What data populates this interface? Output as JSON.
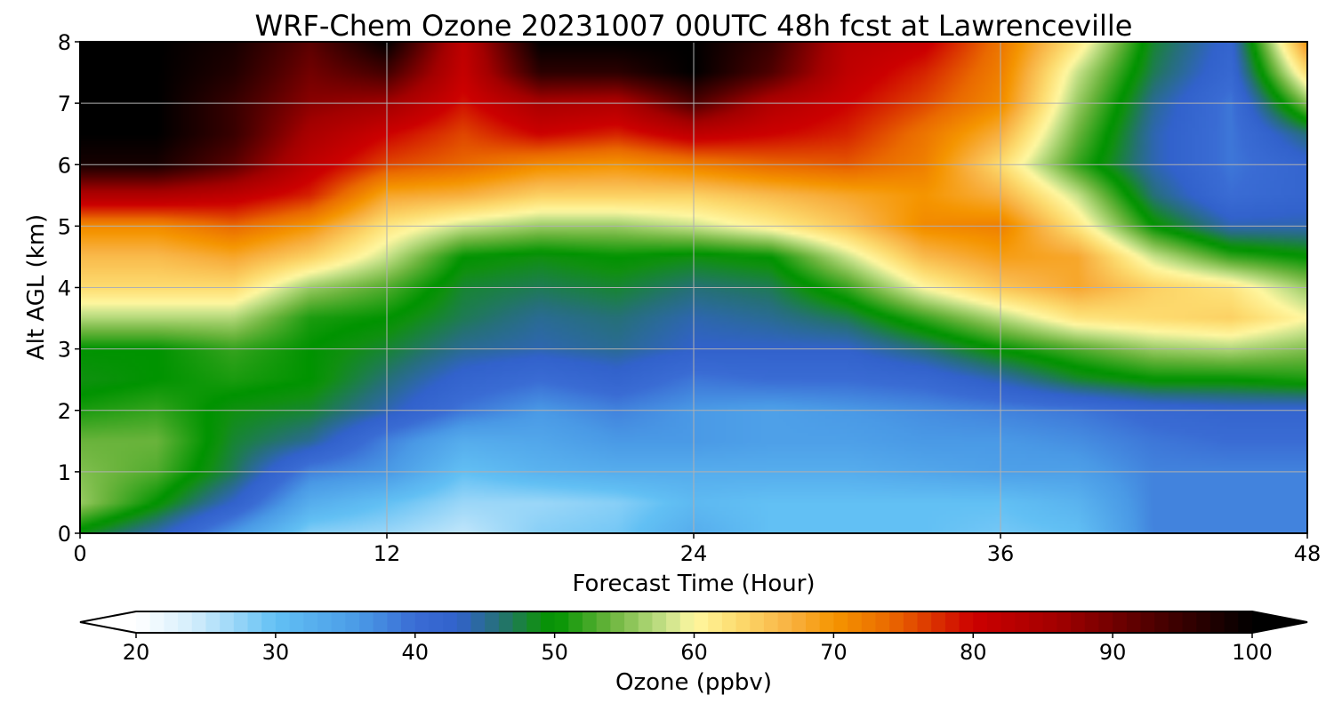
{
  "chart_data": {
    "type": "heatmap",
    "title": "WRF-Chem Ozone  20231007 00UTC 48h fcst at Lawrenceville",
    "xlabel": "Forecast Time (Hour)",
    "ylabel": "Alt AGL (km)",
    "xlim": [
      0,
      48
    ],
    "ylim": [
      0,
      8
    ],
    "xticks": [
      "0",
      "12",
      "24",
      "36",
      "48"
    ],
    "yticks": [
      "0",
      "1",
      "2",
      "3",
      "4",
      "5",
      "6",
      "7",
      "8"
    ],
    "grid": true,
    "colorbar": {
      "label": "Ozone  (ppbv)",
      "range": [
        20,
        100
      ],
      "ticks": [
        "20",
        "30",
        "40",
        "50",
        "60",
        "70",
        "80",
        "90",
        "100"
      ],
      "extend": "both",
      "stops": [
        {
          "v": 20,
          "c": "#ffffff"
        },
        {
          "v": 24,
          "c": "#d4eefc"
        },
        {
          "v": 30,
          "c": "#62c0f4"
        },
        {
          "v": 36,
          "c": "#4a9ae6"
        },
        {
          "v": 40,
          "c": "#3a6cd4"
        },
        {
          "v": 43,
          "c": "#3262cc"
        },
        {
          "v": 46,
          "c": "#267078"
        },
        {
          "v": 49,
          "c": "#109010"
        },
        {
          "v": 50,
          "c": "#009300"
        },
        {
          "v": 54,
          "c": "#6ab43c"
        },
        {
          "v": 58,
          "c": "#c8e28a"
        },
        {
          "v": 60,
          "c": "#fff7a0"
        },
        {
          "v": 63,
          "c": "#fddc70"
        },
        {
          "v": 67,
          "c": "#f8b040"
        },
        {
          "v": 70,
          "c": "#f59500"
        },
        {
          "v": 74,
          "c": "#ea6a00"
        },
        {
          "v": 80,
          "c": "#cc0000"
        },
        {
          "v": 86,
          "c": "#a30000"
        },
        {
          "v": 93,
          "c": "#4e0000"
        },
        {
          "v": 100,
          "c": "#000000"
        }
      ]
    },
    "hours": [
      0,
      3,
      6,
      9,
      12,
      15,
      18,
      21,
      24,
      27,
      30,
      33,
      36,
      39,
      42,
      45,
      48
    ],
    "altitudes_km": [
      0,
      0.5,
      1,
      1.5,
      2,
      2.5,
      3,
      3.5,
      4,
      4.5,
      5,
      5.5,
      6,
      6.5,
      7,
      7.5,
      8
    ],
    "values": [
      [
        49,
        44,
        36,
        28,
        27,
        25,
        28,
        29,
        33,
        30,
        30,
        30,
        29,
        30,
        38,
        38,
        38
      ],
      [
        56,
        50,
        43,
        33,
        30,
        27,
        27,
        28,
        31,
        30,
        30,
        30,
        30,
        32,
        38,
        38,
        38
      ],
      [
        55,
        53,
        47,
        38,
        36,
        30,
        32,
        33,
        33,
        33,
        33,
        34,
        35,
        35,
        38,
        38,
        38
      ],
      [
        54,
        54,
        48,
        45,
        38,
        33,
        34,
        36,
        36,
        35,
        35,
        36,
        36,
        37,
        39,
        40,
        40
      ],
      [
        51,
        52,
        49,
        48,
        44,
        39,
        36,
        38,
        36,
        35,
        36,
        37,
        38,
        39,
        41,
        42,
        42
      ],
      [
        49,
        50,
        51,
        50,
        46,
        42,
        40,
        42,
        39,
        40,
        40,
        41,
        44,
        48,
        50,
        50,
        51
      ],
      [
        50,
        50,
        52,
        50,
        48,
        45,
        44,
        45,
        43,
        43,
        43,
        46,
        50,
        53,
        56,
        57,
        55
      ],
      [
        57,
        57,
        57,
        51,
        50,
        47,
        45,
        46,
        44,
        45,
        47,
        52,
        57,
        62,
        63,
        64,
        60
      ],
      [
        63,
        63,
        63,
        56,
        53,
        48,
        47,
        48,
        46,
        47,
        52,
        60,
        65,
        68,
        64,
        62,
        56
      ],
      [
        66,
        66,
        68,
        64,
        58,
        50,
        49,
        50,
        49,
        50,
        58,
        66,
        69,
        68,
        58,
        52,
        50
      ],
      [
        71,
        71,
        74,
        70,
        62,
        58,
        56,
        56,
        58,
        61,
        65,
        71,
        72,
        62,
        50,
        44,
        44
      ],
      [
        84,
        84,
        82,
        78,
        68,
        67,
        64,
        64,
        64,
        66,
        68,
        70,
        67,
        58,
        46,
        40,
        42
      ],
      [
        98,
        98,
        92,
        82,
        76,
        74,
        71,
        70,
        72,
        74,
        75,
        72,
        63,
        52,
        44,
        39,
        42
      ],
      [
        100,
        100,
        95,
        85,
        80,
        76,
        80,
        78,
        82,
        80,
        78,
        73,
        67,
        54,
        44,
        39,
        46
      ],
      [
        100,
        100,
        95,
        88,
        86,
        79,
        85,
        84,
        93,
        84,
        80,
        76,
        71,
        56,
        45,
        39,
        55
      ],
      [
        100,
        100,
        97,
        90,
        94,
        81,
        96,
        96,
        100,
        93,
        82,
        78,
        72,
        58,
        47,
        41,
        63
      ],
      [
        100,
        100,
        98,
        92,
        100,
        82,
        100,
        100,
        100,
        95,
        83,
        81,
        73,
        62,
        48,
        42,
        70
      ]
    ]
  }
}
